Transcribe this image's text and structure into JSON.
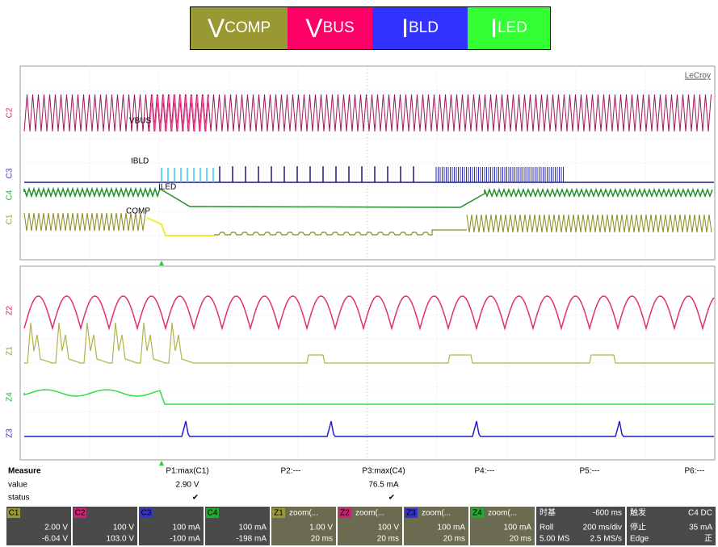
{
  "legend": [
    {
      "main": "V",
      "sub": "COMP"
    },
    {
      "main": "V",
      "sub": "BUS"
    },
    {
      "main": "I",
      "sub": "BLD"
    },
    {
      "main": "I",
      "sub": "LED"
    }
  ],
  "brand": "LeCroy",
  "trace_labels": [
    "VBUS",
    "IBLD",
    "ILED",
    "COMP"
  ],
  "upper_markers": [
    "C2",
    "C3",
    "C4",
    "C1"
  ],
  "lower_markers": [
    "Z2",
    "Z1",
    "Z4",
    "Z3"
  ],
  "measure": {
    "title": "Measure",
    "row_labels": [
      "value",
      "status"
    ],
    "params": [
      {
        "name": "P1:max(C1)",
        "value": "2.90 V",
        "status": "✔"
      },
      {
        "name": "P2:---"
      },
      {
        "name": "P3:max(C4)",
        "value": "76.5 mA",
        "status": "✔"
      },
      {
        "name": "P4:---"
      },
      {
        "name": "P5:---"
      },
      {
        "name": "P6:---"
      }
    ]
  },
  "channels": [
    {
      "id": "C1",
      "scale": "2.00 V",
      "offset": "-6.04 V"
    },
    {
      "id": "C2",
      "scale": "100 V",
      "offset": "103.0 V"
    },
    {
      "id": "C3",
      "scale": "100 mA",
      "offset": "-100 mA"
    },
    {
      "id": "C4",
      "scale": "100 mA",
      "offset": "-198 mA"
    },
    {
      "id": "Z1",
      "label": "zoom(...",
      "scale": "1.00 V",
      "offset": "20 ms"
    },
    {
      "id": "Z2",
      "label": "zoom(...",
      "scale": "100 V",
      "offset": "20 ms"
    },
    {
      "id": "Z3",
      "label": "zoom(...",
      "scale": "100 mA",
      "offset": "20 ms"
    },
    {
      "id": "Z4",
      "label": "zoom(...",
      "scale": "100 mA",
      "offset": "20 ms"
    }
  ],
  "timebase": {
    "title": "时基",
    "delay": "-600 ms",
    "mode": "Roll",
    "rate": "200 ms/div",
    "points": "5.00 MS",
    "sample": "2.5 MS/s"
  },
  "trigger": {
    "title": "触发",
    "source": "C4 DC",
    "state": "停止",
    "level": "35 mA",
    "kind": "Edge",
    "slope": "正"
  }
}
